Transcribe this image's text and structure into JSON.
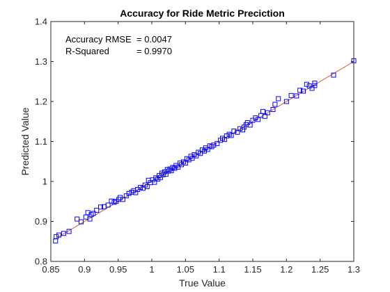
{
  "chart_data": {
    "type": "scatter",
    "title": "Accuracy for Ride Metric Preciction",
    "xlabel": "True Value",
    "ylabel": "Predicted Value",
    "xlim": [
      0.85,
      1.3
    ],
    "ylim": [
      0.8,
      1.4
    ],
    "xticks": [
      "0.85",
      "0.9",
      "0.95",
      "1",
      "1.05",
      "1.1",
      "1.15",
      "1.2",
      "1.25",
      "1.3"
    ],
    "yticks": [
      "0.8",
      "0.9",
      "1",
      "1.1",
      "1.2",
      "1.3",
      "1.4"
    ],
    "grid": false,
    "annotations": [
      {
        "label": "Accuracy RMSE",
        "value": "= 0.0047"
      },
      {
        "label": "R-Squared",
        "value": "= 0.9970"
      }
    ],
    "fit_line": {
      "x": [
        0.855,
        1.3
      ],
      "y": [
        0.855,
        1.3
      ],
      "color": "#d95319"
    },
    "marker_color": "#0000ff",
    "points": [
      [
        0.857,
        0.851
      ],
      [
        0.858,
        0.862
      ],
      [
        0.862,
        0.866
      ],
      [
        0.869,
        0.87
      ],
      [
        0.877,
        0.875
      ],
      [
        0.889,
        0.906
      ],
      [
        0.895,
        0.899
      ],
      [
        0.902,
        0.911
      ],
      [
        0.905,
        0.922
      ],
      [
        0.908,
        0.906
      ],
      [
        0.91,
        0.917
      ],
      [
        0.913,
        0.92
      ],
      [
        0.918,
        0.928
      ],
      [
        0.924,
        0.936
      ],
      [
        0.929,
        0.937
      ],
      [
        0.935,
        0.941
      ],
      [
        0.94,
        0.951
      ],
      [
        0.944,
        0.948
      ],
      [
        0.947,
        0.95
      ],
      [
        0.951,
        0.955
      ],
      [
        0.953,
        0.96
      ],
      [
        0.957,
        0.955
      ],
      [
        0.962,
        0.964
      ],
      [
        0.966,
        0.97
      ],
      [
        0.97,
        0.973
      ],
      [
        0.973,
        0.977
      ],
      [
        0.976,
        0.972
      ],
      [
        0.979,
        0.98
      ],
      [
        0.983,
        0.985
      ],
      [
        0.987,
        0.983
      ],
      [
        0.99,
        0.991
      ],
      [
        0.993,
        0.987
      ],
      [
        0.995,
        1.003
      ],
      [
        0.998,
        0.997
      ],
      [
        1.001,
        1.004
      ],
      [
        1.004,
        0.998
      ],
      [
        1.006,
        1.009
      ],
      [
        1.009,
        1.006
      ],
      [
        1.011,
        1.015
      ],
      [
        1.013,
        1.01
      ],
      [
        1.015,
        1.021
      ],
      [
        1.017,
        1.017
      ],
      [
        1.019,
        1.024
      ],
      [
        1.021,
        1.018
      ],
      [
        1.023,
        1.03
      ],
      [
        1.025,
        1.026
      ],
      [
        1.027,
        1.031
      ],
      [
        1.029,
        1.027
      ],
      [
        1.031,
        1.035
      ],
      [
        1.034,
        1.033
      ],
      [
        1.036,
        1.04
      ],
      [
        1.039,
        1.036
      ],
      [
        1.042,
        1.046
      ],
      [
        1.044,
        1.042
      ],
      [
        1.047,
        1.049
      ],
      [
        1.05,
        1.046
      ],
      [
        1.052,
        1.057
      ],
      [
        1.055,
        1.054
      ],
      [
        1.058,
        1.063
      ],
      [
        1.06,
        1.058
      ],
      [
        1.063,
        1.067
      ],
      [
        1.066,
        1.064
      ],
      [
        1.069,
        1.073
      ],
      [
        1.072,
        1.07
      ],
      [
        1.075,
        1.079
      ],
      [
        1.078,
        1.076
      ],
      [
        1.08,
        1.084
      ],
      [
        1.083,
        1.08
      ],
      [
        1.086,
        1.089
      ],
      [
        1.089,
        1.087
      ],
      [
        1.092,
        1.091
      ],
      [
        1.097,
        1.095
      ],
      [
        1.102,
        1.103
      ],
      [
        1.105,
        1.108
      ],
      [
        1.108,
        1.105
      ],
      [
        1.111,
        1.114
      ],
      [
        1.115,
        1.118
      ],
      [
        1.118,
        1.115
      ],
      [
        1.122,
        1.126
      ],
      [
        1.127,
        1.123
      ],
      [
        1.131,
        1.132
      ],
      [
        1.135,
        1.129
      ],
      [
        1.137,
        1.136
      ],
      [
        1.14,
        1.142
      ],
      [
        1.142,
        1.147
      ],
      [
        1.146,
        1.141
      ],
      [
        1.15,
        1.153
      ],
      [
        1.154,
        1.159
      ],
      [
        1.158,
        1.155
      ],
      [
        1.162,
        1.165
      ],
      [
        1.165,
        1.175
      ],
      [
        1.168,
        1.163
      ],
      [
        1.172,
        1.172
      ],
      [
        1.18,
        1.18
      ],
      [
        1.183,
        1.193
      ],
      [
        1.188,
        1.207
      ],
      [
        1.2,
        1.2
      ],
      [
        1.207,
        1.215
      ],
      [
        1.215,
        1.214
      ],
      [
        1.22,
        1.228
      ],
      [
        1.225,
        1.226
      ],
      [
        1.23,
        1.243
      ],
      [
        1.234,
        1.239
      ],
      [
        1.238,
        1.233
      ],
      [
        1.242,
        1.24
      ],
      [
        1.242,
        1.246
      ],
      [
        1.27,
        1.266
      ],
      [
        1.3,
        1.302
      ]
    ]
  }
}
